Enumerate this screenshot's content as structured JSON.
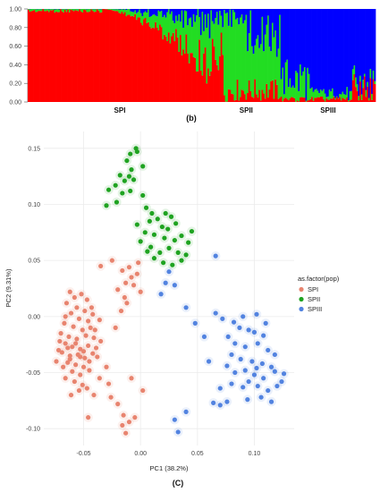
{
  "chart_data": [
    {
      "type": "bar",
      "subtype": "stacked-structure-barplot",
      "ylim": [
        0,
        1
      ],
      "yticks": [
        "0.00",
        "0.20",
        "0.40",
        "0.60",
        "0.80",
        "1.00"
      ],
      "groups": [
        "SPI",
        "SPII",
        "SPIII"
      ],
      "panel_label": "(b)",
      "colors": [
        "#ff0000",
        "#22dd22",
        "#0000ff"
      ],
      "group_segments": [
        {
          "group": "SPI",
          "individuals": 126,
          "dominant_cluster": 0
        },
        {
          "group": "SPII",
          "individuals": 47,
          "dominant_cluster": 1
        },
        {
          "group": "SPIII",
          "individuals": 65,
          "dominant_cluster": 2
        }
      ]
    },
    {
      "type": "scatter",
      "xlabel": "PC1 (38.2%)",
      "ylabel": "PC2 (9.31%)",
      "xlim": [
        -0.085,
        0.135
      ],
      "ylim": [
        -0.115,
        0.165
      ],
      "xticks": [
        -0.05,
        0,
        0.05,
        0.1
      ],
      "xtick_labels": [
        "-0.05",
        "0.00",
        "0.05",
        "0.10"
      ],
      "yticks": [
        -0.1,
        -0.05,
        0,
        0.05,
        0.1,
        0.15
      ],
      "ytick_labels": [
        "-0.10",
        "-0.05",
        "0.00",
        "0.05",
        "0.10",
        "0.15"
      ],
      "grid": true,
      "legend_title": "as.factor(pop)",
      "legend_position": "right",
      "panel_label": "(C)",
      "series": [
        {
          "name": "SPI",
          "color": "#e8846f",
          "points": [
            [
              -0.062,
              0.022
            ],
            [
              -0.058,
              0.017
            ],
            [
              -0.052,
              0.02
            ],
            [
              -0.047,
              0.015
            ],
            [
              -0.065,
              0.012
            ],
            [
              -0.056,
              0.008
            ],
            [
              -0.049,
              0.005
            ],
            [
              -0.043,
              0.008
            ],
            [
              -0.061,
              0.003
            ],
            [
              -0.054,
              -0.002
            ],
            [
              -0.046,
              -0.004
            ],
            [
              -0.067,
              -0.006
            ],
            [
              -0.059,
              -0.009
            ],
            [
              -0.051,
              -0.012
            ],
            [
              -0.044,
              -0.01
            ],
            [
              -0.07,
              -0.015
            ],
            [
              -0.063,
              -0.018
            ],
            [
              -0.056,
              -0.02
            ],
            [
              -0.048,
              -0.017
            ],
            [
              -0.041,
              -0.019
            ],
            [
              -0.066,
              -0.024
            ],
            [
              -0.06,
              -0.027
            ],
            [
              -0.053,
              -0.029
            ],
            [
              -0.046,
              -0.026
            ],
            [
              -0.039,
              -0.028
            ],
            [
              -0.069,
              -0.032
            ],
            [
              -0.062,
              -0.035
            ],
            [
              -0.055,
              -0.034
            ],
            [
              -0.049,
              -0.037
            ],
            [
              -0.042,
              -0.033
            ],
            [
              -0.064,
              -0.041
            ],
            [
              -0.057,
              -0.043
            ],
            [
              -0.05,
              -0.045
            ],
            [
              -0.06,
              -0.049
            ],
            [
              -0.053,
              -0.052
            ],
            [
              -0.045,
              -0.048
            ],
            [
              -0.066,
              -0.055
            ],
            [
              -0.058,
              -0.058
            ],
            [
              -0.051,
              -0.061
            ],
            [
              -0.054,
              -0.066
            ],
            [
              -0.061,
              -0.07
            ],
            [
              -0.072,
              -0.03
            ],
            [
              -0.074,
              -0.04
            ],
            [
              -0.071,
              -0.022
            ],
            [
              -0.068,
              -0.045
            ],
            [
              -0.064,
              -0.028
            ],
            [
              -0.057,
              -0.024
            ],
            [
              -0.05,
              -0.031
            ],
            [
              -0.045,
              -0.04
            ],
            [
              -0.038,
              -0.036
            ],
            [
              -0.035,
              -0.022
            ],
            [
              -0.04,
              -0.012
            ],
            [
              -0.036,
              -0.003
            ],
            [
              -0.042,
              0.002
            ],
            [
              -0.03,
              -0.045
            ],
            [
              -0.028,
              -0.06
            ],
            [
              -0.026,
              -0.072
            ],
            [
              -0.036,
              -0.055
            ],
            [
              -0.047,
              -0.064
            ],
            [
              -0.041,
              -0.07
            ],
            [
              -0.022,
              -0.01
            ],
            [
              -0.017,
              0.005
            ],
            [
              -0.012,
              0.012
            ],
            [
              -0.02,
              0.024
            ],
            [
              -0.013,
              0.03
            ],
            [
              -0.008,
              0.035
            ],
            [
              -0.016,
              0.041
            ],
            [
              -0.01,
              0.044
            ],
            [
              -0.003,
              0.038
            ],
            [
              -0.006,
              0.028
            ],
            [
              0.0,
              0.022
            ],
            [
              -0.014,
              0.017
            ],
            [
              -0.035,
              0.045
            ],
            [
              -0.025,
              0.05
            ],
            [
              -0.002,
              0.048
            ],
            [
              -0.02,
              -0.078
            ],
            [
              -0.015,
              -0.088
            ],
            [
              -0.01,
              -0.094
            ],
            [
              -0.005,
              -0.09
            ],
            [
              -0.016,
              -0.097
            ],
            [
              -0.013,
              -0.104
            ],
            [
              -0.046,
              -0.09
            ],
            [
              0.002,
              -0.066
            ],
            [
              -0.008,
              -0.055
            ],
            [
              -0.066,
              0.0
            ],
            [
              -0.053,
              -0.036
            ],
            [
              -0.062,
              -0.038
            ]
          ]
        },
        {
          "name": "SPII",
          "color": "#1fa321",
          "points": [
            [
              -0.012,
              0.139
            ],
            [
              -0.009,
              0.145
            ],
            [
              -0.004,
              0.15
            ],
            [
              -0.003,
              0.147
            ],
            [
              -0.008,
              0.131
            ],
            [
              0.002,
              0.134
            ],
            [
              -0.018,
              0.126
            ],
            [
              -0.014,
              0.121
            ],
            [
              -0.01,
              0.125
            ],
            [
              -0.006,
              0.122
            ],
            [
              -0.028,
              0.113
            ],
            [
              -0.022,
              0.117
            ],
            [
              -0.016,
              0.11
            ],
            [
              -0.009,
              0.112
            ],
            [
              0.002,
              0.108
            ],
            [
              -0.03,
              0.099
            ],
            [
              -0.021,
              0.102
            ],
            [
              0.005,
              0.097
            ],
            [
              0.01,
              0.092
            ],
            [
              0.015,
              0.087
            ],
            [
              0.008,
              0.085
            ],
            [
              0.022,
              0.092
            ],
            [
              0.027,
              0.089
            ],
            [
              0.019,
              0.08
            ],
            [
              0.004,
              0.075
            ],
            [
              0.012,
              0.073
            ],
            [
              0.021,
              0.07
            ],
            [
              0.03,
              0.068
            ],
            [
              0.036,
              0.072
            ],
            [
              0.042,
              0.066
            ],
            [
              0.0,
              0.067
            ],
            [
              0.009,
              0.062
            ],
            [
              0.017,
              0.057
            ],
            [
              0.025,
              0.061
            ],
            [
              0.033,
              0.057
            ],
            [
              0.04,
              0.055
            ],
            [
              0.012,
              0.052
            ],
            [
              0.02,
              0.048
            ],
            [
              0.028,
              0.046
            ],
            [
              0.006,
              0.058
            ],
            [
              0.045,
              0.076
            ],
            [
              0.036,
              0.05
            ],
            [
              0.024,
              0.078
            ],
            [
              0.031,
              0.083
            ],
            [
              -0.003,
              0.082
            ]
          ]
        },
        {
          "name": "SPIII",
          "color": "#5283e0",
          "points": [
            [
              0.025,
              0.04
            ],
            [
              0.022,
              0.03
            ],
            [
              0.03,
              0.028
            ],
            [
              0.018,
              0.02
            ],
            [
              0.04,
              0.008
            ],
            [
              0.066,
              0.054
            ],
            [
              0.066,
              0.003
            ],
            [
              0.072,
              -0.002
            ],
            [
              0.082,
              -0.005
            ],
            [
              0.09,
              0.0
            ],
            [
              0.102,
              0.002
            ],
            [
              0.11,
              -0.006
            ],
            [
              0.087,
              -0.01
            ],
            [
              0.095,
              -0.012
            ],
            [
              0.1,
              -0.014
            ],
            [
              0.108,
              -0.017
            ],
            [
              0.077,
              -0.018
            ],
            [
              0.083,
              -0.024
            ],
            [
              0.092,
              -0.027
            ],
            [
              0.103,
              -0.024
            ],
            [
              0.112,
              -0.03
            ],
            [
              0.118,
              -0.034
            ],
            [
              0.08,
              -0.034
            ],
            [
              0.088,
              -0.038
            ],
            [
              0.098,
              -0.04
            ],
            [
              0.107,
              -0.042
            ],
            [
              0.115,
              -0.045
            ],
            [
              0.092,
              -0.048
            ],
            [
              0.1,
              -0.052
            ],
            [
              0.108,
              -0.055
            ],
            [
              0.083,
              -0.05
            ],
            [
              0.076,
              -0.044
            ],
            [
              0.095,
              -0.058
            ],
            [
              0.103,
              -0.062
            ],
            [
              0.112,
              -0.066
            ],
            [
              0.12,
              -0.062
            ],
            [
              0.126,
              -0.051
            ],
            [
              0.08,
              -0.06
            ],
            [
              0.07,
              -0.064
            ],
            [
              0.09,
              -0.063
            ],
            [
              0.106,
              -0.072
            ],
            [
              0.115,
              -0.076
            ],
            [
              0.094,
              -0.074
            ],
            [
              0.064,
              -0.077
            ],
            [
              0.07,
              -0.079
            ],
            [
              0.076,
              -0.076
            ],
            [
              0.124,
              -0.058
            ],
            [
              0.118,
              -0.049
            ],
            [
              0.102,
              -0.046
            ],
            [
              0.048,
              -0.006
            ],
            [
              0.056,
              -0.018
            ],
            [
              0.06,
              -0.04
            ],
            [
              0.04,
              -0.085
            ],
            [
              0.03,
              -0.092
            ],
            [
              0.033,
              -0.103
            ]
          ]
        }
      ]
    }
  ]
}
